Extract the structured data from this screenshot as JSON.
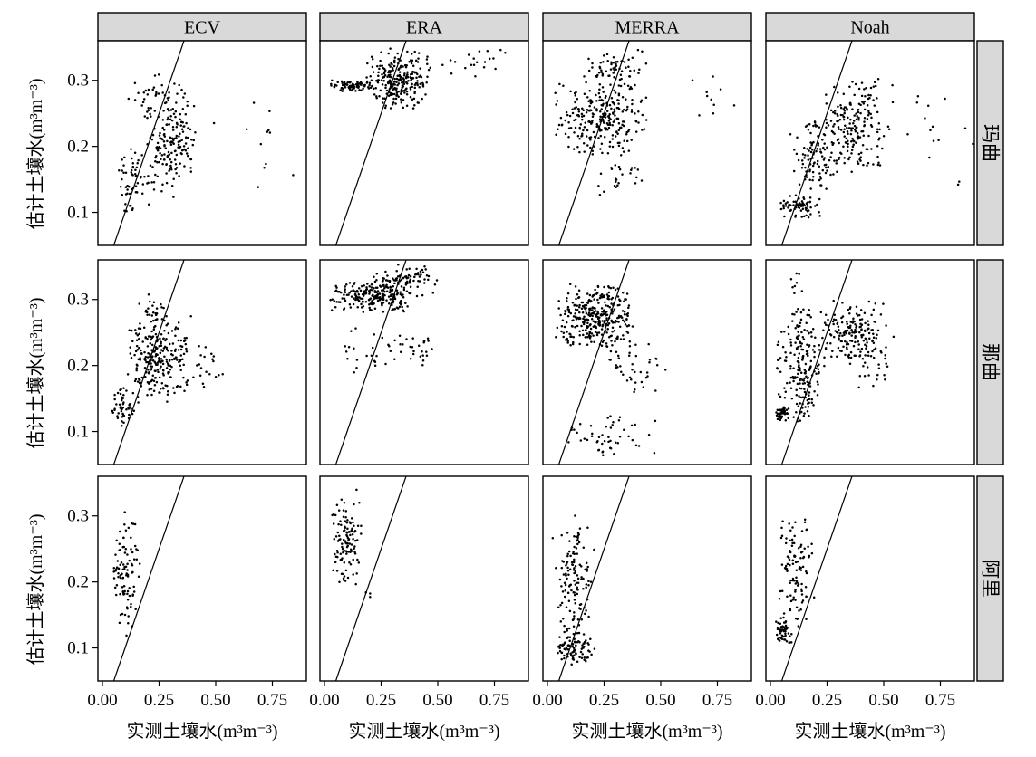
{
  "chart_data": {
    "type": "scatter",
    "layout": "facet-grid",
    "columns": [
      "ECV",
      "ERA",
      "MERRA",
      "Noah"
    ],
    "rows": [
      "玛曲",
      "那曲",
      "阿里"
    ],
    "xlabel": "实测土壤水(m³m⁻³)",
    "ylabel": "估计土壤水(m³m⁻³)",
    "xlim": [
      -0.02,
      0.9
    ],
    "ylim": [
      0.05,
      0.36
    ],
    "x_ticks": [
      0.0,
      0.25,
      0.5,
      0.75
    ],
    "x_tick_labels": [
      "0.00",
      "0.25",
      "0.50",
      "0.75"
    ],
    "y_ticks": [
      0.1,
      0.2,
      0.3
    ],
    "y_tick_labels": [
      "0.1",
      "0.2",
      "0.3"
    ],
    "reference_line": "1:1",
    "grid": false,
    "legend": "none",
    "point_color": "#000000",
    "panels": [
      {
        "row": "玛曲",
        "col": "ECV",
        "clusters": [
          {
            "n": 180,
            "x": [
              0.18,
              0.42
            ],
            "y": [
              0.12,
              0.3
            ]
          },
          {
            "n": 60,
            "x": [
              0.05,
              0.22
            ],
            "y": [
              0.09,
              0.2
            ]
          },
          {
            "n": 25,
            "x": [
              0.1,
              0.3
            ],
            "y": [
              0.24,
              0.32
            ]
          },
          {
            "n": 12,
            "x": [
              0.45,
              0.88
            ],
            "y": [
              0.12,
              0.3
            ]
          }
        ]
      },
      {
        "row": "玛曲",
        "col": "ERA",
        "clusters": [
          {
            "n": 80,
            "x": [
              0.02,
              0.22
            ],
            "y": [
              0.283,
              0.3
            ]
          },
          {
            "n": 250,
            "x": [
              0.18,
              0.48
            ],
            "y": [
              0.25,
              0.35
            ]
          },
          {
            "n": 20,
            "x": [
              0.48,
              0.85
            ],
            "y": [
              0.3,
              0.35
            ]
          }
        ]
      },
      {
        "row": "玛曲",
        "col": "MERRA",
        "clusters": [
          {
            "n": 250,
            "x": [
              0.02,
              0.45
            ],
            "y": [
              0.18,
              0.3
            ]
          },
          {
            "n": 70,
            "x": [
              0.15,
              0.45
            ],
            "y": [
              0.28,
              0.35
            ]
          },
          {
            "n": 25,
            "x": [
              0.2,
              0.42
            ],
            "y": [
              0.12,
              0.2
            ]
          },
          {
            "n": 10,
            "x": [
              0.55,
              0.88
            ],
            "y": [
              0.22,
              0.32
            ]
          }
        ]
      },
      {
        "row": "玛曲",
        "col": "Noah",
        "clusters": [
          {
            "n": 70,
            "x": [
              0.02,
              0.25
            ],
            "y": [
              0.09,
              0.13
            ]
          },
          {
            "n": 100,
            "x": [
              0.08,
              0.3
            ],
            "y": [
              0.12,
              0.25
            ]
          },
          {
            "n": 200,
            "x": [
              0.2,
              0.55
            ],
            "y": [
              0.15,
              0.31
            ]
          },
          {
            "n": 15,
            "x": [
              0.55,
              0.9
            ],
            "y": [
              0.12,
              0.3
            ]
          }
        ]
      },
      {
        "row": "那曲",
        "col": "ECV",
        "clusters": [
          {
            "n": 50,
            "x": [
              0.03,
              0.15
            ],
            "y": [
              0.1,
              0.17
            ]
          },
          {
            "n": 260,
            "x": [
              0.08,
              0.4
            ],
            "y": [
              0.14,
              0.28
            ]
          },
          {
            "n": 25,
            "x": [
              0.15,
              0.3
            ],
            "y": [
              0.26,
              0.31
            ]
          },
          {
            "n": 20,
            "x": [
              0.35,
              0.55
            ],
            "y": [
              0.15,
              0.24
            ]
          }
        ]
      },
      {
        "row": "那曲",
        "col": "ERA",
        "clusters": [
          {
            "n": 220,
            "x": [
              0.02,
              0.4
            ],
            "y": [
              0.28,
              0.33
            ]
          },
          {
            "n": 90,
            "x": [
              0.2,
              0.5
            ],
            "y": [
              0.3,
              0.355
            ]
          },
          {
            "n": 30,
            "x": [
              0.05,
              0.4
            ],
            "y": [
              0.18,
              0.26
            ]
          },
          {
            "n": 20,
            "x": [
              0.35,
              0.5
            ],
            "y": [
              0.19,
              0.25
            ]
          }
        ]
      },
      {
        "row": "那曲",
        "col": "MERRA",
        "clusters": [
          {
            "n": 330,
            "x": [
              0.02,
              0.4
            ],
            "y": [
              0.22,
              0.33
            ]
          },
          {
            "n": 40,
            "x": [
              0.2,
              0.55
            ],
            "y": [
              0.15,
              0.25
            ]
          },
          {
            "n": 50,
            "x": [
              0.02,
              0.5
            ],
            "y": [
              0.06,
              0.13
            ]
          }
        ]
      },
      {
        "row": "那曲",
        "col": "Noah",
        "clusters": [
          {
            "n": 45,
            "x": [
              0.02,
              0.08
            ],
            "y": [
              0.115,
              0.14
            ]
          },
          {
            "n": 200,
            "x": [
              0.02,
              0.25
            ],
            "y": [
              0.1,
              0.3
            ]
          },
          {
            "n": 160,
            "x": [
              0.2,
              0.5
            ],
            "y": [
              0.2,
              0.3
            ]
          },
          {
            "n": 40,
            "x": [
              0.35,
              0.55
            ],
            "y": [
              0.15,
              0.28
            ]
          },
          {
            "n": 8,
            "x": [
              0.08,
              0.15
            ],
            "y": [
              0.3,
              0.345
            ]
          }
        ]
      },
      {
        "row": "阿里",
        "col": "ECV",
        "clusters": [
          {
            "n": 100,
            "x": [
              0.03,
              0.17
            ],
            "y": [
              0.11,
              0.31
            ]
          }
        ]
      },
      {
        "row": "阿里",
        "col": "ERA",
        "clusters": [
          {
            "n": 120,
            "x": [
              0.02,
              0.17
            ],
            "y": [
              0.18,
              0.34
            ]
          },
          {
            "n": 3,
            "x": [
              0.17,
              0.22
            ],
            "y": [
              0.17,
              0.19
            ]
          }
        ]
      },
      {
        "row": "阿里",
        "col": "MERRA",
        "clusters": [
          {
            "n": 80,
            "x": [
              0.02,
              0.22
            ],
            "y": [
              0.07,
              0.12
            ]
          },
          {
            "n": 140,
            "x": [
              0.02,
              0.22
            ],
            "y": [
              0.1,
              0.31
            ]
          }
        ]
      },
      {
        "row": "阿里",
        "col": "Noah",
        "clusters": [
          {
            "n": 50,
            "x": [
              0.01,
              0.1
            ],
            "y": [
              0.1,
              0.145
            ]
          },
          {
            "n": 110,
            "x": [
              0.02,
              0.2
            ],
            "y": [
              0.12,
              0.31
            ]
          }
        ]
      }
    ]
  }
}
